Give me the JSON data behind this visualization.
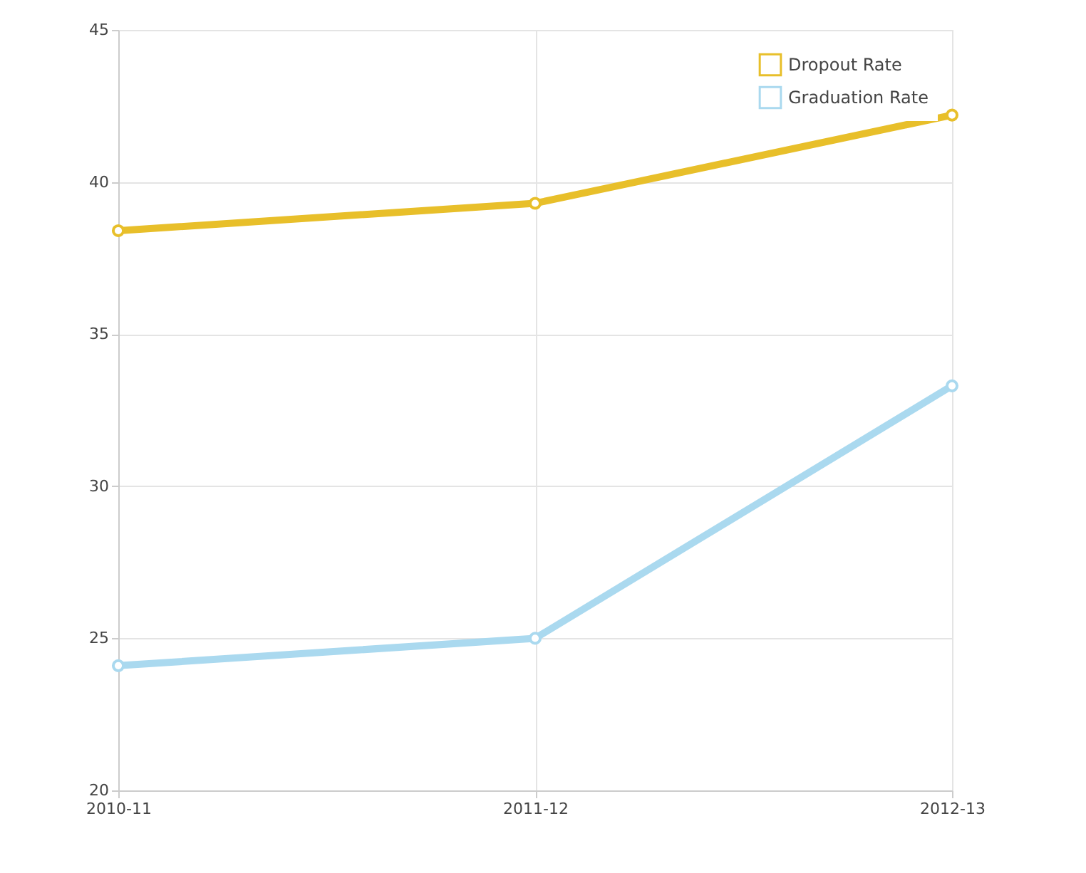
{
  "chart_data": {
    "type": "line",
    "categories": [
      "2010-11",
      "2011-12",
      "2012-13"
    ],
    "series": [
      {
        "name": "Dropout Rate",
        "color": "#e8bf2a",
        "values": [
          38.4,
          39.3,
          42.2
        ]
      },
      {
        "name": "Graduation Rate",
        "color": "#aad9ef",
        "values": [
          24.1,
          25.0,
          33.3
        ]
      }
    ],
    "ylim": [
      20,
      45
    ],
    "yticks": [
      20,
      25,
      30,
      35,
      40,
      45
    ],
    "grid": true,
    "legend": "top right",
    "marker": "circle",
    "line_style": "solid"
  }
}
